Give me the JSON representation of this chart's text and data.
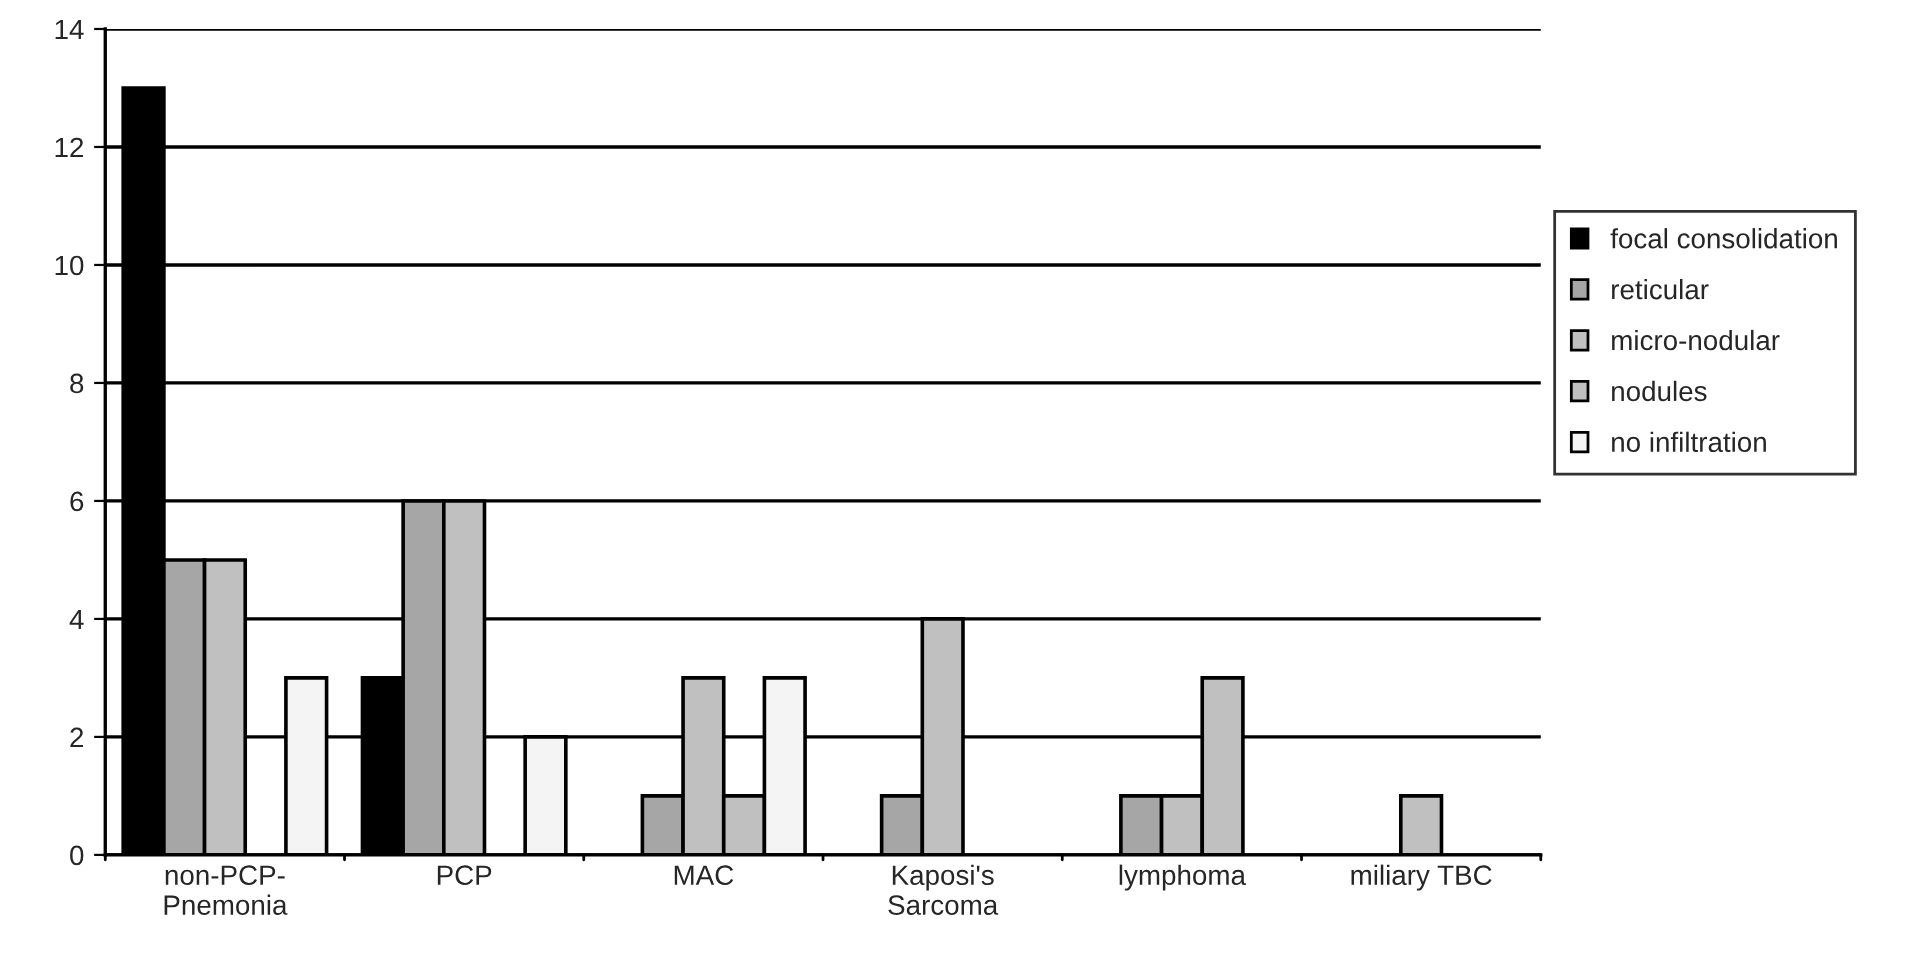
{
  "chart_data": {
    "type": "bar",
    "categories": [
      "non-PCP-\nPnemonia",
      "PCP",
      "MAC",
      "Kaposi's\nSarcoma",
      "lymphoma",
      "miliary TBC"
    ],
    "series": [
      {
        "name": "focal consolidation",
        "color": "#000000",
        "values": [
          13,
          3,
          0,
          0,
          0,
          0
        ]
      },
      {
        "name": "reticular",
        "color": "#a6a6a6",
        "values": [
          5,
          6,
          1,
          1,
          1,
          0
        ]
      },
      {
        "name": "micro-nodular",
        "color": "#c0c0c0",
        "values": [
          5,
          6,
          3,
          4,
          1,
          1
        ]
      },
      {
        "name": "nodules",
        "color": "#c0c0c0",
        "values": [
          0,
          0,
          1,
          0,
          3,
          0
        ]
      },
      {
        "name": "no infiltration",
        "color": "#f4f4f4",
        "values": [
          3,
          2,
          3,
          0,
          0,
          0
        ]
      }
    ],
    "ylim": [
      0,
      14
    ],
    "yticks": [
      0,
      2,
      4,
      6,
      8,
      10,
      12,
      14
    ],
    "grid": "y",
    "legend": "right"
  }
}
